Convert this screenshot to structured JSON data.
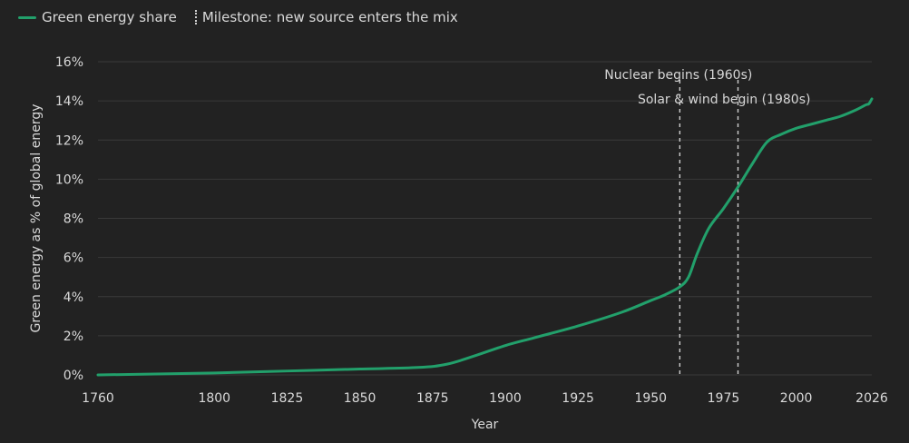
{
  "legend": {
    "series_label": "Green energy share",
    "milestone_label": "Milestone: new source enters the mix"
  },
  "colors": {
    "background": "#222222",
    "series": "#22a06b",
    "grid": "#3a3a3a",
    "milestone": "#cfcfcf"
  },
  "chart_data": {
    "type": "line",
    "xlabel": "Year",
    "ylabel": "Green energy as % of global energy",
    "xlim": [
      1760,
      2026
    ],
    "ylim": [
      0,
      16
    ],
    "x_ticks": [
      1760,
      1800,
      1825,
      1850,
      1875,
      1900,
      1925,
      1950,
      1975,
      2000,
      2026
    ],
    "y_ticks": [
      0,
      2,
      4,
      6,
      8,
      10,
      12,
      14,
      16
    ],
    "y_tick_labels": [
      "0%",
      "2%",
      "4%",
      "6%",
      "8%",
      "10%",
      "12%",
      "14%",
      "16%"
    ],
    "grid": "horizontal",
    "legend_position": "top-left",
    "series": [
      {
        "name": "Green energy share",
        "x": [
          1760,
          1800,
          1825,
          1850,
          1870,
          1880,
          1890,
          1900,
          1910,
          1925,
          1940,
          1950,
          1955,
          1960,
          1963,
          1966,
          1970,
          1975,
          1980,
          1985,
          1990,
          1995,
          2000,
          2005,
          2010,
          2015,
          2020,
          2024,
          2025,
          2026
        ],
        "y": [
          0,
          0.1,
          0.2,
          0.3,
          0.38,
          0.55,
          1.0,
          1.5,
          1.9,
          2.5,
          3.2,
          3.8,
          4.1,
          4.5,
          5.0,
          6.2,
          7.5,
          8.5,
          9.6,
          10.8,
          11.9,
          12.3,
          12.6,
          12.8,
          13.0,
          13.2,
          13.5,
          13.8,
          13.85,
          14.1
        ]
      }
    ],
    "milestones": [
      {
        "x": 1960,
        "label": "Nuclear begins (1960s)"
      },
      {
        "x": 1980,
        "label": "Solar & wind begin (1980s)"
      }
    ]
  }
}
